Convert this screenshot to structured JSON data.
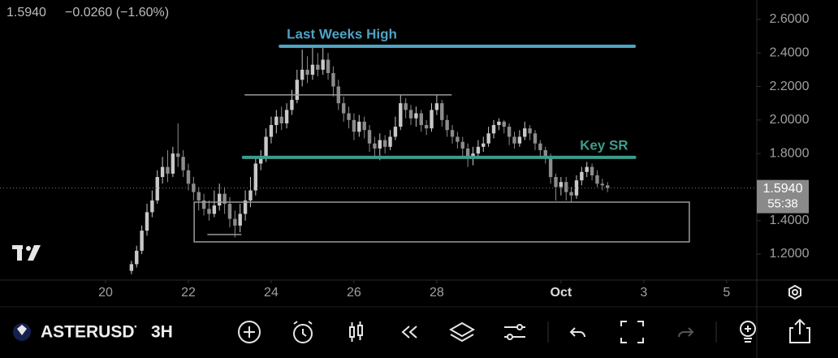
{
  "header": {
    "last": "1.5940",
    "change": "−0.0260 (−1.60%)"
  },
  "chart_data": {
    "type": "candlestick",
    "x": [
      20.625,
      20.75,
      20.875,
      21,
      21.125,
      21.25,
      21.375,
      21.5,
      21.625,
      21.75,
      21.875,
      22,
      22.125,
      22.25,
      22.375,
      22.5,
      22.625,
      22.75,
      22.875,
      23,
      23.125,
      23.25,
      23.375,
      23.5,
      23.625,
      23.75,
      23.875,
      24,
      24.125,
      24.25,
      24.375,
      24.5,
      24.625,
      24.75,
      24.875,
      25,
      25.125,
      25.25,
      25.375,
      25.5,
      25.625,
      25.75,
      25.875,
      26,
      26.125,
      26.25,
      26.375,
      26.5,
      26.625,
      26.75,
      26.875,
      27,
      27.125,
      27.25,
      27.375,
      27.5,
      27.625,
      27.75,
      27.875,
      28,
      28.125,
      28.25,
      28.375,
      28.5,
      28.625,
      28.75,
      28.875,
      29,
      29.125,
      29.25,
      29.375,
      29.5,
      29.625,
      29.75,
      29.875,
      30,
      30.125,
      30.25,
      30.375,
      30.5,
      30.625,
      30.75,
      30.875,
      31,
      31.125,
      31.25,
      31.375,
      31.5,
      31.625,
      31.75,
      31.875,
      32,
      32.125
    ],
    "open": [
      1.1,
      1.14,
      1.22,
      1.34,
      1.45,
      1.52,
      1.66,
      1.72,
      1.68,
      1.8,
      1.78,
      1.7,
      1.62,
      1.57,
      1.52,
      1.47,
      1.44,
      1.49,
      1.56,
      1.5,
      1.41,
      1.37,
      1.44,
      1.52,
      1.58,
      1.74,
      1.78,
      1.9,
      1.97,
      2.02,
      1.98,
      2.06,
      2.12,
      2.24,
      2.3,
      2.27,
      2.33,
      2.3,
      2.36,
      2.28,
      2.2,
      2.1,
      2.04,
      2.0,
      1.93,
      1.99,
      1.94,
      1.86,
      1.83,
      1.88,
      1.84,
      1.9,
      1.96,
      2.1,
      2.06,
      2.01,
      2.04,
      1.97,
      1.95,
      2.06,
      2.1,
      2.0,
      1.94,
      1.9,
      1.87,
      1.83,
      1.77,
      1.8,
      1.84,
      1.86,
      1.92,
      1.97,
      1.99,
      1.96,
      1.9,
      1.86,
      1.9,
      1.95,
      1.92,
      1.86,
      1.82,
      1.78,
      1.66,
      1.6,
      1.63,
      1.57,
      1.55,
      1.64,
      1.69,
      1.72,
      1.67,
      1.62,
      1.61
    ],
    "high": [
      1.16,
      1.25,
      1.37,
      1.5,
      1.58,
      1.7,
      1.78,
      1.82,
      1.84,
      1.98,
      1.82,
      1.74,
      1.66,
      1.6,
      1.56,
      1.52,
      1.58,
      1.62,
      1.6,
      1.54,
      1.46,
      1.5,
      1.58,
      1.66,
      1.78,
      1.82,
      1.95,
      2.02,
      2.06,
      2.08,
      2.1,
      2.18,
      2.3,
      2.42,
      2.38,
      2.44,
      2.4,
      2.43,
      2.4,
      2.32,
      2.24,
      2.14,
      2.08,
      2.04,
      2.03,
      2.02,
      1.97,
      1.9,
      1.92,
      1.91,
      1.94,
      2.02,
      2.15,
      2.13,
      2.09,
      2.08,
      2.06,
      2.0,
      2.1,
      2.15,
      2.12,
      2.03,
      1.97,
      1.93,
      1.9,
      1.86,
      1.84,
      1.88,
      1.9,
      1.96,
      2.0,
      2.01,
      2.0,
      1.98,
      1.93,
      1.94,
      1.99,
      1.97,
      1.94,
      1.88,
      1.84,
      1.8,
      1.68,
      1.66,
      1.66,
      1.6,
      1.67,
      1.72,
      1.75,
      1.74,
      1.7,
      1.65,
      1.63
    ],
    "low": [
      1.08,
      1.12,
      1.2,
      1.31,
      1.42,
      1.5,
      1.62,
      1.63,
      1.66,
      1.72,
      1.66,
      1.58,
      1.52,
      1.46,
      1.43,
      1.4,
      1.42,
      1.46,
      1.44,
      1.36,
      1.3,
      1.33,
      1.4,
      1.48,
      1.55,
      1.7,
      1.75,
      1.86,
      1.92,
      1.94,
      1.95,
      2.03,
      2.1,
      2.2,
      2.22,
      2.24,
      2.26,
      2.27,
      2.24,
      2.14,
      2.06,
      1.99,
      1.95,
      1.88,
      1.9,
      1.89,
      1.81,
      1.78,
      1.76,
      1.8,
      1.82,
      1.88,
      1.94,
      2.01,
      1.97,
      1.96,
      1.93,
      1.91,
      1.93,
      2.03,
      1.96,
      1.9,
      1.86,
      1.83,
      1.78,
      1.72,
      1.73,
      1.78,
      1.81,
      1.84,
      1.89,
      1.94,
      1.92,
      1.85,
      1.83,
      1.84,
      1.88,
      1.88,
      1.82,
      1.78,
      1.74,
      1.62,
      1.52,
      1.55,
      1.52,
      1.51,
      1.53,
      1.61,
      1.66,
      1.64,
      1.6,
      1.58,
      1.57
    ],
    "close": [
      1.14,
      1.22,
      1.34,
      1.45,
      1.52,
      1.66,
      1.72,
      1.68,
      1.8,
      1.78,
      1.7,
      1.62,
      1.57,
      1.52,
      1.47,
      1.44,
      1.49,
      1.56,
      1.5,
      1.41,
      1.37,
      1.44,
      1.52,
      1.58,
      1.74,
      1.78,
      1.9,
      1.97,
      2.02,
      1.98,
      2.06,
      2.12,
      2.24,
      2.3,
      2.27,
      2.33,
      2.3,
      2.36,
      2.28,
      2.2,
      2.1,
      2.04,
      2.0,
      1.93,
      1.99,
      1.94,
      1.86,
      1.83,
      1.88,
      1.84,
      1.9,
      1.96,
      2.1,
      2.06,
      2.01,
      2.04,
      1.97,
      1.95,
      2.06,
      2.1,
      2.0,
      1.94,
      1.9,
      1.87,
      1.83,
      1.77,
      1.8,
      1.84,
      1.86,
      1.92,
      1.97,
      1.99,
      1.96,
      1.9,
      1.86,
      1.9,
      1.95,
      1.92,
      1.86,
      1.82,
      1.78,
      1.66,
      1.6,
      1.63,
      1.57,
      1.55,
      1.64,
      1.69,
      1.72,
      1.67,
      1.62,
      1.61,
      1.594
    ],
    "up_color": "#c8c8c8",
    "down_color": "#8c8c8c",
    "xlim": [
      17.45,
      35.73
    ],
    "ylim": [
      1.045,
      2.716
    ],
    "xticks": [
      20,
      22,
      24,
      26,
      28,
      {
        "value": 31,
        "label": "Oct"
      },
      {
        "value": 33,
        "label": "3"
      },
      {
        "value": 35,
        "label": "5"
      }
    ],
    "yticks": [
      {
        "value": 2.6,
        "label": "2.6000"
      },
      {
        "value": 2.4,
        "label": "2.4000"
      },
      {
        "value": 2.2,
        "label": "2.2000"
      },
      {
        "value": 2.0,
        "label": "2.0000"
      },
      {
        "value": 1.8,
        "label": "1.8000"
      },
      {
        "value": 1.4,
        "label": "1.4000"
      },
      {
        "value": 1.2,
        "label": "1.2000"
      }
    ],
    "lines": [
      {
        "label": "Last Weeks High",
        "value": 2.44,
        "x": [
          24.22,
          32.77
        ],
        "color": "#4fa3c4"
      },
      {
        "value": 2.15,
        "x": [
          23.37,
          28.35
        ],
        "color": "#9a9a9a"
      },
      {
        "label": "Key SR",
        "value": 1.777,
        "x": [
          23.33,
          32.78
        ],
        "color": "#3d9c8c"
      },
      {
        "value": 1.317,
        "x": [
          22.47,
          23.27
        ],
        "color": "#9a9a9a"
      }
    ],
    "boxes": [
      {
        "x": [
          22.14,
          34.1
        ],
        "y": [
          1.273,
          1.51
        ],
        "color": "#9a9a9a"
      }
    ],
    "current_price": {
      "value": 1.594,
      "label": "1.5940",
      "countdown": "55:38"
    }
  },
  "toolbar": {
    "symbol": "ASTERUSDT",
    "interval": "3H"
  }
}
